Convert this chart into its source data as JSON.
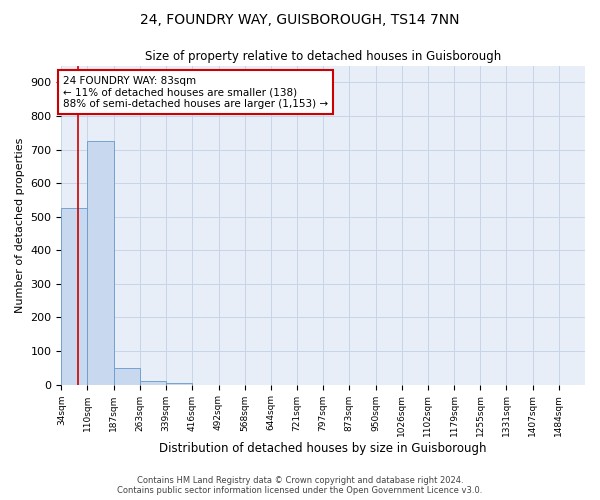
{
  "title1": "24, FOUNDRY WAY, GUISBOROUGH, TS14 7NN",
  "title2": "Size of property relative to detached houses in Guisborough",
  "xlabel": "Distribution of detached houses by size in Guisborough",
  "ylabel": "Number of detached properties",
  "bin_edges": [
    34,
    110,
    187,
    263,
    339,
    416,
    492,
    568,
    644,
    721,
    797,
    873,
    950,
    1026,
    1102,
    1179,
    1255,
    1331,
    1407,
    1484,
    1560
  ],
  "bar_heights": [
    525,
    725,
    48,
    10,
    5,
    0,
    0,
    0,
    0,
    0,
    0,
    0,
    0,
    0,
    0,
    0,
    0,
    0,
    0,
    0
  ],
  "bar_color": "#c8d8ee",
  "bar_edge_color": "#6699cc",
  "property_size": 83,
  "annotation_line1": "24 FOUNDRY WAY: 83sqm",
  "annotation_line2": "← 11% of detached houses are smaller (138)",
  "annotation_line3": "88% of semi-detached houses are larger (1,153) →",
  "vline_color": "#cc0000",
  "annotation_box_color": "#cc0000",
  "ylim": [
    0,
    950
  ],
  "yticks": [
    0,
    100,
    200,
    300,
    400,
    500,
    600,
    700,
    800,
    900
  ],
  "grid_color": "#c8d4e8",
  "background_color": "#e8eef8",
  "footer1": "Contains HM Land Registry data © Crown copyright and database right 2024.",
  "footer2": "Contains public sector information licensed under the Open Government Licence v3.0."
}
